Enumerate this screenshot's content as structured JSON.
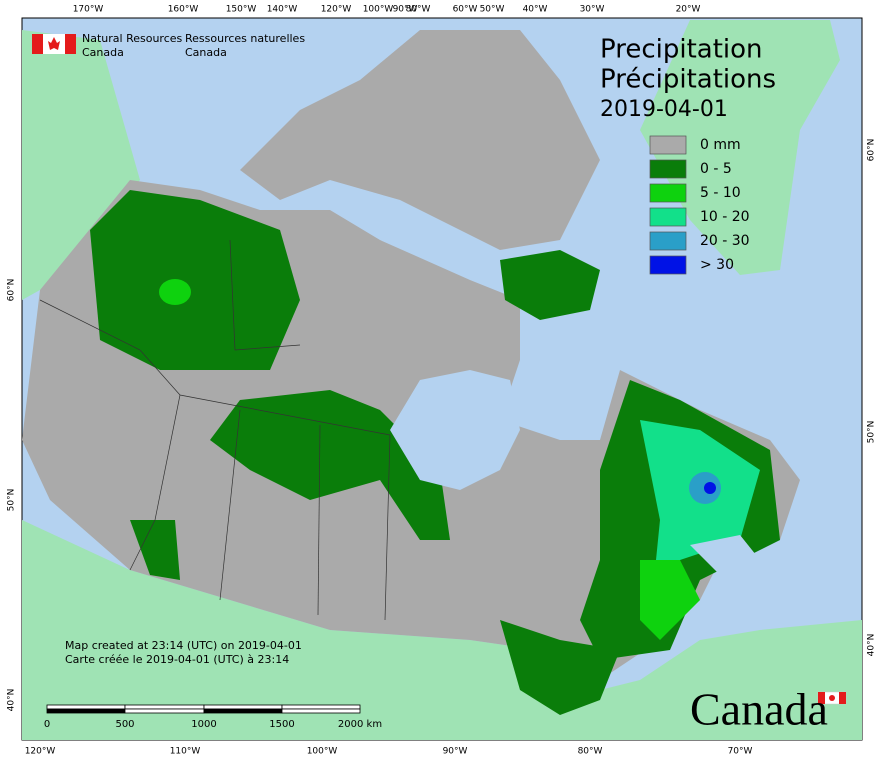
{
  "header": {
    "agency_en": [
      "Natural Resources",
      "Canada"
    ],
    "agency_fr": [
      "Ressources naturelles",
      "Canada"
    ]
  },
  "title": [
    "Precipitation",
    "Précipitations"
  ],
  "date": "2019-04-01",
  "legend": [
    {
      "label": "0 mm",
      "color": "#aaaaaa"
    },
    {
      "label": "0 - 5",
      "color": "#0a7d0a"
    },
    {
      "label": "5 - 10",
      "color": "#0ed20e"
    },
    {
      "label": "10 - 20",
      "color": "#12e08a"
    },
    {
      "label": "20 - 30",
      "color": "#2a9fc8"
    },
    {
      "label": "> 30",
      "color": "#0012e6"
    }
  ],
  "graticule": {
    "top": [
      "170°W",
      "160°W",
      "150°W",
      "140°W",
      "120°W",
      "100°W",
      "90°W",
      "80°W",
      "60°W",
      "50°W",
      "40°W",
      "30°W",
      "20°W"
    ],
    "bottom": [
      "120°W",
      "110°W",
      "100°W",
      "90°W",
      "80°W",
      "70°W"
    ],
    "left": [
      "60°N",
      "50°N",
      "40°N"
    ],
    "right": [
      "60°N",
      "50°N",
      "40°N"
    ]
  },
  "notes": [
    "Map created at 23:14 (UTC) on 2019-04-01",
    "Carte créée le 2019-04-01 (UTC) à 23:14"
  ],
  "scale_bar": [
    "0",
    "500",
    "1000",
    "1500",
    "2000 km"
  ],
  "wordmark": "Canada"
}
